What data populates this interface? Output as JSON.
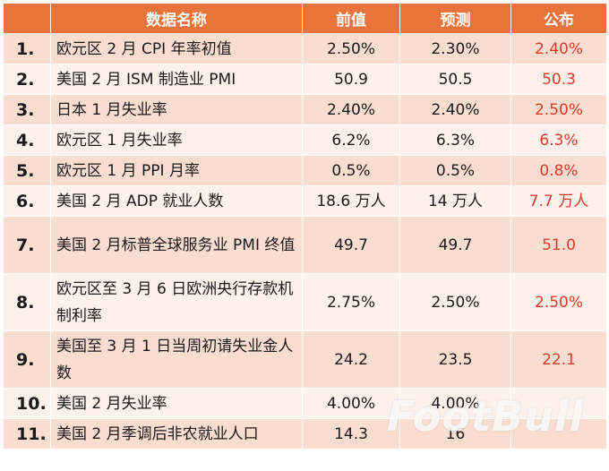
{
  "colors": {
    "header_bg": "#e8743b",
    "row_odd_bg": "#f9ddd0",
    "row_even_bg": "#fdf1eb",
    "published_text": "#e03a2b"
  },
  "header": {
    "name": "数据名称",
    "previous": "前值",
    "forecast": "预测",
    "published": "公布"
  },
  "rows": [
    {
      "num": "1.",
      "name": "欧元区 2 月 CPI 年率初值",
      "previous": "2.50%",
      "forecast": "2.30%",
      "published": "2.40%"
    },
    {
      "num": "2.",
      "name": "美国 2 月 ISM 制造业 PMI",
      "previous": "50.9",
      "forecast": "50.5",
      "published": "50.3"
    },
    {
      "num": "3.",
      "name": "日本 1 月失业率",
      "previous": "2.40%",
      "forecast": "2.40%",
      "published": "2.50%"
    },
    {
      "num": "4.",
      "name": "欧元区 1 月失业率",
      "previous": "6.2%",
      "forecast": "6.3%",
      "published": "6.3%"
    },
    {
      "num": "5.",
      "name": "欧元区 1 月 PPI 月率",
      "previous": "0.5%",
      "forecast": "0.5%",
      "published": "0.8%"
    },
    {
      "num": "6.",
      "name": "美国 2 月 ADP 就业人数",
      "previous": "18.6 万人",
      "forecast": "14 万人",
      "published": "7.7 万人"
    },
    {
      "num": "7.",
      "name": "美国 2 月标普全球服务业 PMI 终值",
      "previous": "49.7",
      "forecast": "49.7",
      "published": "51.0"
    },
    {
      "num": "8.",
      "name": "欧元区至 3 月 6 日欧洲央行存款机制利率",
      "previous": "2.75%",
      "forecast": "2.50%",
      "published": "2.50%"
    },
    {
      "num": "9.",
      "name": "美国至 3 月 1 日当周初请失业金人数",
      "previous": "24.2",
      "forecast": "23.5",
      "published": "22.1"
    },
    {
      "num": "10.",
      "name": "美国 2 月失业率",
      "previous": "4.00%",
      "forecast": "4.00%",
      "published": ""
    },
    {
      "num": "11.",
      "name": "美国 2 月季调后非农就业人口",
      "previous": "14.3",
      "forecast": "16",
      "published": ""
    }
  ],
  "watermark": "FootBull"
}
